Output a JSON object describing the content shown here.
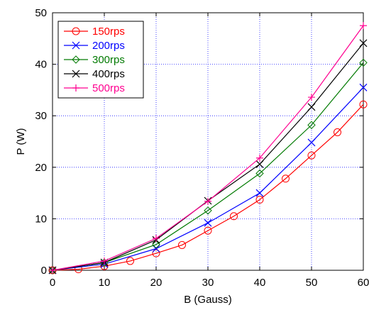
{
  "chart_data": {
    "type": "line",
    "xlabel": "B  (Gauss)",
    "ylabel": "P (W)",
    "xlim": [
      0,
      60
    ],
    "ylim": [
      0,
      50
    ],
    "xticks": [
      "0",
      "10",
      "20",
      "30",
      "40",
      "50",
      "60"
    ],
    "yticks": [
      "0",
      "10",
      "20",
      "30",
      "40",
      "50"
    ],
    "grid": true,
    "grid_style": "dotted",
    "legend_position": "top-left",
    "series": [
      {
        "name": "150rps",
        "color": "#ff0000",
        "marker": "circle",
        "x": [
          0,
          5,
          10,
          15,
          20,
          25,
          30,
          35,
          40,
          45,
          50,
          55,
          60
        ],
        "y": [
          0,
          0.2,
          0.8,
          1.8,
          3.3,
          4.9,
          7.7,
          10.5,
          13.7,
          17.8,
          22.3,
          26.8,
          32.2
        ]
      },
      {
        "name": "200rps",
        "color": "#0000ff",
        "marker": "x",
        "x": [
          0,
          10,
          20,
          30,
          40,
          50,
          60
        ],
        "y": [
          0,
          1.2,
          4.2,
          9.2,
          15.0,
          24.8,
          35.5
        ]
      },
      {
        "name": "300rps",
        "color": "#007a00",
        "marker": "diamond",
        "x": [
          0,
          10,
          20,
          30,
          40,
          50,
          60
        ],
        "y": [
          0,
          1.5,
          5.0,
          11.6,
          18.8,
          28.2,
          40.3
        ]
      },
      {
        "name": "400rps",
        "color": "#000000",
        "marker": "x",
        "x": [
          0,
          10,
          20,
          30,
          40,
          50,
          60
        ],
        "y": [
          0,
          1.5,
          5.9,
          13.5,
          20.6,
          31.7,
          44.1
        ]
      },
      {
        "name": "500rps",
        "color": "#ff0090",
        "marker": "plus",
        "x": [
          0,
          10,
          20,
          30,
          40,
          50,
          60
        ],
        "y": [
          0,
          1.8,
          6.2,
          13.4,
          21.8,
          33.6,
          47.5
        ]
      }
    ]
  }
}
